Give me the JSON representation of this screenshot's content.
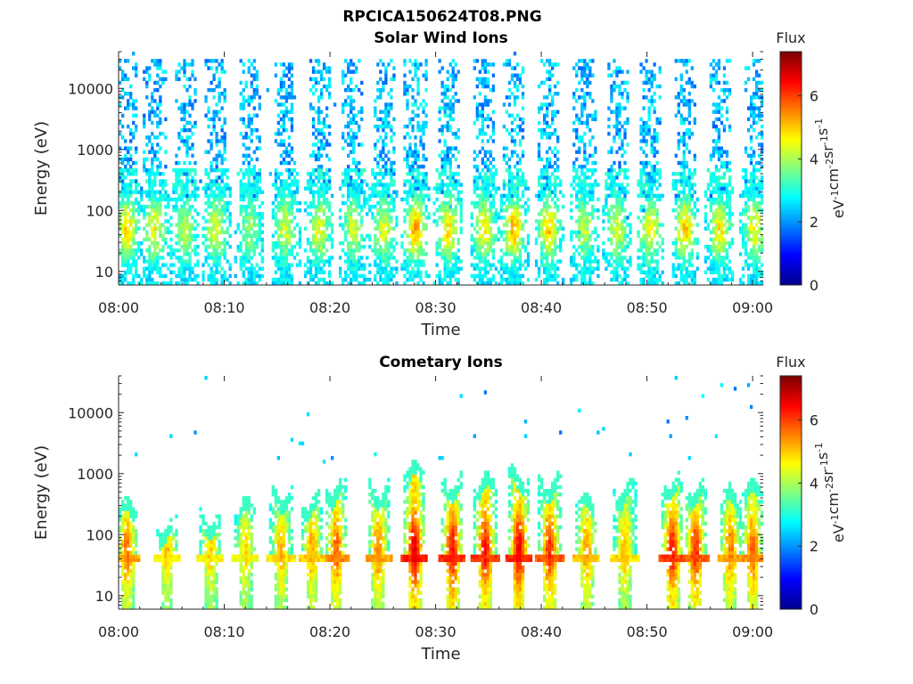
{
  "page_title": "RPCICA150624T08.PNG",
  "colors": {
    "axis": "#262626",
    "colormap": [
      "#00008f",
      "#0000ff",
      "#0080ff",
      "#00ffff",
      "#80ff80",
      "#ffff00",
      "#ff8000",
      "#ff0000",
      "#800000"
    ]
  },
  "chart_data": [
    {
      "type": "heatmap",
      "id": "solar",
      "title": "Solar Wind Ions",
      "xlabel": "Time",
      "ylabel": "Energy (eV)",
      "yscale": "log",
      "ylim": [
        6,
        40000
      ],
      "xlim": [
        "08:00",
        "09:01"
      ],
      "xticks": [
        "08:00",
        "08:10",
        "08:20",
        "08:30",
        "08:40",
        "08:50",
        "09:00"
      ],
      "yticks": [
        {
          "value": 10,
          "label": "10"
        },
        {
          "value": 100,
          "label": "100"
        },
        {
          "value": 1000,
          "label": "1000"
        },
        {
          "value": 10000,
          "label": "10000"
        }
      ],
      "colorbar": {
        "title": "Flux",
        "label": "eV-1cm-2sr-1s-1",
        "range": [
          0,
          7.4
        ],
        "ticks": [
          0,
          2,
          4,
          6
        ]
      },
      "bursts": [
        {
          "t": 0.8,
          "high": 2.6,
          "peak": 4.9
        },
        {
          "t": 3.4,
          "high": 2.7,
          "peak": 4.6
        },
        {
          "t": 6.3,
          "high": 2.8,
          "peak": 4.1
        },
        {
          "t": 9.2,
          "high": 2.8,
          "peak": 4.4
        },
        {
          "t": 12.4,
          "high": 2.7,
          "peak": 3.9
        },
        {
          "t": 15.8,
          "high": 2.6,
          "peak": 4.3
        },
        {
          "t": 19.0,
          "high": 2.7,
          "peak": 4.5
        },
        {
          "t": 22.2,
          "high": 2.7,
          "peak": 4.2
        },
        {
          "t": 25.1,
          "high": 2.8,
          "peak": 4.4
        },
        {
          "t": 28.1,
          "high": 2.8,
          "peak": 5.3
        },
        {
          "t": 31.2,
          "high": 2.9,
          "peak": 4.9
        },
        {
          "t": 34.6,
          "high": 2.7,
          "peak": 4.8
        },
        {
          "t": 37.4,
          "high": 2.9,
          "peak": 5.2
        },
        {
          "t": 40.7,
          "high": 2.8,
          "peak": 5.0
        },
        {
          "t": 44.1,
          "high": 2.7,
          "peak": 4.2
        },
        {
          "t": 47.2,
          "high": 2.8,
          "peak": 4.3
        },
        {
          "t": 50.3,
          "high": 2.8,
          "peak": 4.6
        },
        {
          "t": 53.6,
          "high": 2.8,
          "peak": 5.0
        },
        {
          "t": 56.9,
          "high": 2.8,
          "peak": 4.7
        },
        {
          "t": 60.2,
          "high": 2.8,
          "peak": 4.6
        }
      ]
    },
    {
      "type": "heatmap",
      "id": "cometary",
      "title": "Cometary Ions",
      "xlabel": "Time",
      "ylabel": "Energy (eV)",
      "yscale": "log",
      "ylim": [
        6,
        40000
      ],
      "xlim": [
        "08:00",
        "09:01"
      ],
      "xticks": [
        "08:00",
        "08:10",
        "08:20",
        "08:30",
        "08:40",
        "08:50",
        "09:00"
      ],
      "yticks": [
        {
          "value": 10,
          "label": "10"
        },
        {
          "value": 100,
          "label": "100"
        },
        {
          "value": 1000,
          "label": "1000"
        },
        {
          "value": 10000,
          "label": "10000"
        }
      ],
      "colorbar": {
        "title": "Flux",
        "label": "eV-1cm-2sr-1s-1",
        "range": [
          0,
          7.4
        ],
        "ticks": [
          0,
          2,
          4,
          6
        ]
      },
      "bursts": [
        {
          "t": 0.8,
          "top": 2.5,
          "peak": 5.6
        },
        {
          "t": 4.6,
          "top": 2.2,
          "peak": 5.0
        },
        {
          "t": 8.7,
          "top": 2.3,
          "peak": 5.0
        },
        {
          "t": 12.0,
          "top": 2.5,
          "peak": 4.9
        },
        {
          "t": 15.4,
          "top": 2.7,
          "peak": 5.2
        },
        {
          "t": 18.3,
          "top": 2.6,
          "peak": 5.3
        },
        {
          "t": 20.6,
          "top": 2.8,
          "peak": 5.8
        },
        {
          "t": 24.6,
          "top": 2.8,
          "peak": 5.6
        },
        {
          "t": 28.0,
          "top": 3.1,
          "peak": 6.7
        },
        {
          "t": 31.6,
          "top": 2.9,
          "peak": 6.5
        },
        {
          "t": 34.7,
          "top": 2.9,
          "peak": 6.4
        },
        {
          "t": 37.9,
          "top": 3.0,
          "peak": 6.6
        },
        {
          "t": 40.8,
          "top": 2.9,
          "peak": 6.2
        },
        {
          "t": 44.3,
          "top": 2.6,
          "peak": 5.4
        },
        {
          "t": 47.9,
          "top": 2.8,
          "peak": 5.2
        },
        {
          "t": 52.4,
          "top": 2.9,
          "peak": 6.4
        },
        {
          "t": 54.6,
          "top": 2.8,
          "peak": 6.2
        },
        {
          "t": 57.9,
          "top": 2.7,
          "peak": 5.6
        },
        {
          "t": 60.0,
          "top": 2.8,
          "peak": 5.8
        }
      ]
    }
  ]
}
